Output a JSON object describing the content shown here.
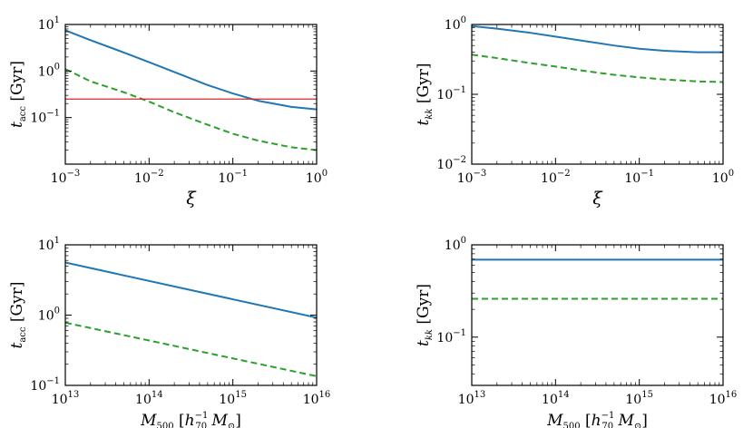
{
  "chart_data": [
    {
      "id": "top-left",
      "type": "line",
      "xscale": "log",
      "yscale": "log",
      "xlim": [
        0.001,
        1
      ],
      "ylim": [
        0.01,
        10
      ],
      "xlabel": "ξ",
      "ylabel": {
        "sym": "t",
        "sub": "acc",
        "unit": "[Gyr]"
      },
      "xticks": [
        {
          "base": "10",
          "exp": "−3"
        },
        {
          "base": "10",
          "exp": "−2"
        },
        {
          "base": "10",
          "exp": "−1"
        },
        {
          "base": "10",
          "exp": "0"
        }
      ],
      "yticks": [
        {
          "base": "10",
          "exp": "−1"
        },
        {
          "base": "10",
          "exp": "0"
        },
        {
          "base": "10",
          "exp": "1"
        }
      ],
      "series": [
        {
          "name": "solid",
          "color": "#1f77b4",
          "style": "solid",
          "x": [
            0.001,
            0.002,
            0.005,
            0.01,
            0.02,
            0.05,
            0.1,
            0.2,
            0.5,
            1.0
          ],
          "y": [
            7.5,
            4.6,
            2.5,
            1.55,
            0.95,
            0.5,
            0.33,
            0.23,
            0.17,
            0.15
          ]
        },
        {
          "name": "dashed",
          "color": "#2ca02c",
          "style": "dashed",
          "x": [
            0.001,
            0.002,
            0.005,
            0.01,
            0.02,
            0.05,
            0.1,
            0.2,
            0.5,
            1.0
          ],
          "y": [
            1.1,
            0.6,
            0.35,
            0.22,
            0.13,
            0.07,
            0.045,
            0.032,
            0.023,
            0.02
          ]
        },
        {
          "name": "horizontal",
          "color": "#d62728",
          "style": "solid",
          "x": [
            0.001,
            1.0
          ],
          "y": [
            0.25,
            0.25
          ]
        }
      ]
    },
    {
      "id": "top-right",
      "type": "line",
      "xscale": "log",
      "yscale": "log",
      "xlim": [
        0.001,
        1
      ],
      "ylim": [
        0.01,
        1
      ],
      "xlabel": "ξ",
      "ylabel": {
        "sym": "t",
        "sub": "kk",
        "unit": "[Gyr]"
      },
      "xticks": [
        {
          "base": "10",
          "exp": "−3"
        },
        {
          "base": "10",
          "exp": "−2"
        },
        {
          "base": "10",
          "exp": "−1"
        },
        {
          "base": "10",
          "exp": "0"
        }
      ],
      "yticks": [
        {
          "base": "10",
          "exp": "−2"
        },
        {
          "base": "10",
          "exp": "−1"
        },
        {
          "base": "10",
          "exp": "0"
        }
      ],
      "series": [
        {
          "name": "solid",
          "color": "#1f77b4",
          "style": "solid",
          "x": [
            0.001,
            0.002,
            0.005,
            0.01,
            0.02,
            0.05,
            0.1,
            0.2,
            0.5,
            1.0
          ],
          "y": [
            0.95,
            0.87,
            0.76,
            0.67,
            0.59,
            0.5,
            0.45,
            0.42,
            0.4,
            0.4
          ]
        },
        {
          "name": "dashed",
          "color": "#2ca02c",
          "style": "dashed",
          "x": [
            0.001,
            0.002,
            0.005,
            0.01,
            0.02,
            0.05,
            0.1,
            0.2,
            0.5,
            1.0
          ],
          "y": [
            0.37,
            0.33,
            0.28,
            0.25,
            0.22,
            0.19,
            0.175,
            0.163,
            0.153,
            0.15
          ]
        }
      ]
    },
    {
      "id": "bottom-left",
      "type": "line",
      "xscale": "log",
      "yscale": "log",
      "xlim": [
        10000000000000.0,
        1e+16
      ],
      "ylim": [
        0.1,
        10
      ],
      "xlabel": {
        "sym": "M",
        "sub": "500",
        "unit_pre": "[h",
        "unit_sub": "70",
        "unit_sup": "−1",
        "unit_post": "M",
        "unit_post_sub": "⊙",
        "close": "]"
      },
      "ylabel": {
        "sym": "t",
        "sub": "acc",
        "unit": "[Gyr]"
      },
      "xticks": [
        {
          "base": "10",
          "exp": "13"
        },
        {
          "base": "10",
          "exp": "14"
        },
        {
          "base": "10",
          "exp": "15"
        },
        {
          "base": "10",
          "exp": "16"
        }
      ],
      "yticks": [
        {
          "base": "10",
          "exp": "−1"
        },
        {
          "base": "10",
          "exp": "0"
        },
        {
          "base": "10",
          "exp": "1"
        }
      ],
      "series": [
        {
          "name": "solid",
          "color": "#1f77b4",
          "style": "solid",
          "x": [
            10000000000000.0,
            1e+16
          ],
          "y": [
            5.6,
            0.92
          ]
        },
        {
          "name": "dashed",
          "color": "#2ca02c",
          "style": "dashed",
          "x": [
            10000000000000.0,
            1e+16
          ],
          "y": [
            0.78,
            0.135
          ]
        }
      ]
    },
    {
      "id": "bottom-right",
      "type": "line",
      "xscale": "log",
      "yscale": "log",
      "xlim": [
        10000000000000.0,
        1e+16
      ],
      "ylim": [
        0.03,
        1
      ],
      "xlabel": {
        "sym": "M",
        "sub": "500",
        "unit_pre": "[h",
        "unit_sub": "70",
        "unit_sup": "−1",
        "unit_post": "M",
        "unit_post_sub": "⊙",
        "close": "]"
      },
      "ylabel": {
        "sym": "t",
        "sub": "kk",
        "unit": "[Gyr]"
      },
      "xticks": [
        {
          "base": "10",
          "exp": "13"
        },
        {
          "base": "10",
          "exp": "14"
        },
        {
          "base": "10",
          "exp": "15"
        },
        {
          "base": "10",
          "exp": "16"
        }
      ],
      "yticks": [
        {
          "base": "10",
          "exp": "−1"
        },
        {
          "base": "10",
          "exp": "0"
        }
      ],
      "series": [
        {
          "name": "solid",
          "color": "#1f77b4",
          "style": "solid",
          "x": [
            10000000000000.0,
            1e+16
          ],
          "y": [
            0.69,
            0.69
          ]
        },
        {
          "name": "dashed",
          "color": "#2ca02c",
          "style": "dashed",
          "x": [
            10000000000000.0,
            1e+16
          ],
          "y": [
            0.26,
            0.26
          ]
        }
      ]
    }
  ]
}
